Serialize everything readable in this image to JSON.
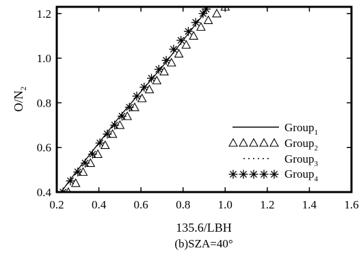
{
  "chart_data": {
    "type": "scatter",
    "xlabel": "135.6/LBH",
    "ylabel": {
      "main": "O/N",
      "sub": "2"
    },
    "caption": "(b)SZA=40°",
    "xlim": [
      0.2,
      1.6
    ],
    "ylim": [
      0.4,
      1.23
    ],
    "xticks": [
      "0.2",
      "0.4",
      "0.6",
      "0.8",
      "1.0",
      "1.2",
      "1.4",
      "1.6"
    ],
    "yticks": [
      "0.4",
      "0.6",
      "0.8",
      "1.0",
      "1.2"
    ],
    "xtick_values": [
      0.2,
      0.4,
      0.6,
      0.8,
      1.0,
      1.2,
      1.4,
      1.6
    ],
    "ytick_values": [
      0.4,
      0.6,
      0.8,
      1.0,
      1.2
    ],
    "grid": false,
    "legend_position": "bottom-right",
    "series": [
      {
        "name": "Group",
        "sub": "1",
        "style": "solid-line",
        "x": [
          0.22,
          0.3,
          0.4,
          0.5,
          0.6,
          0.7,
          0.8,
          0.9,
          0.91
        ],
        "y": [
          0.4,
          0.5,
          0.62,
          0.74,
          0.85,
          0.96,
          1.08,
          1.2,
          1.22
        ]
      },
      {
        "name": "Group",
        "sub": "2",
        "style": "triangle-markers",
        "x": [
          0.255,
          0.29,
          0.325,
          0.36,
          0.395,
          0.43,
          0.465,
          0.5,
          0.535,
          0.57,
          0.605,
          0.64,
          0.675,
          0.71,
          0.745,
          0.78,
          0.815,
          0.85,
          0.885,
          0.92,
          0.96,
          1.0
        ],
        "y": [
          0.4,
          0.44,
          0.49,
          0.53,
          0.57,
          0.61,
          0.66,
          0.7,
          0.74,
          0.78,
          0.82,
          0.86,
          0.9,
          0.94,
          0.98,
          1.02,
          1.06,
          1.1,
          1.14,
          1.17,
          1.2,
          1.23
        ]
      },
      {
        "name": "Group",
        "sub": "3",
        "style": "dotted-line",
        "x": [
          0.22,
          0.3,
          0.4,
          0.5,
          0.6,
          0.7,
          0.8,
          0.9,
          0.91
        ],
        "y": [
          0.4,
          0.5,
          0.62,
          0.74,
          0.85,
          0.96,
          1.08,
          1.2,
          1.22
        ]
      },
      {
        "name": "Group",
        "sub": "4",
        "style": "asterisk-markers",
        "x": [
          0.23,
          0.265,
          0.3,
          0.335,
          0.37,
          0.405,
          0.44,
          0.475,
          0.51,
          0.545,
          0.58,
          0.615,
          0.65,
          0.685,
          0.72,
          0.755,
          0.79,
          0.825,
          0.86,
          0.895,
          0.91
        ],
        "y": [
          0.4,
          0.45,
          0.49,
          0.53,
          0.57,
          0.62,
          0.66,
          0.7,
          0.74,
          0.78,
          0.83,
          0.87,
          0.91,
          0.95,
          0.99,
          1.04,
          1.08,
          1.12,
          1.16,
          1.2,
          1.22
        ]
      }
    ]
  }
}
